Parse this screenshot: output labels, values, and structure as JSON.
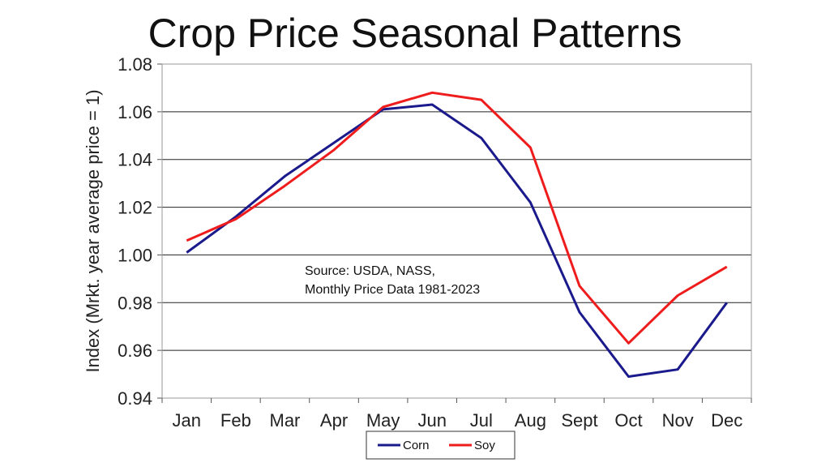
{
  "chart_data": {
    "type": "line",
    "title": "Crop Price Seasonal Patterns",
    "ylabel": "Index (Mrkt. year average price = 1)",
    "xlabel": "",
    "categories": [
      "Jan",
      "Feb",
      "Mar",
      "Apr",
      "May",
      "Jun",
      "Jul",
      "Aug",
      "Sept",
      "Oct",
      "Nov",
      "Dec"
    ],
    "ylim": [
      0.94,
      1.08
    ],
    "yticks": [
      "0.94",
      "0.96",
      "0.98",
      "1.00",
      "1.02",
      "1.04",
      "1.06",
      "1.08"
    ],
    "grid": true,
    "legend_position": "bottom",
    "annotation": [
      "Source: USDA, NASS,",
      "Monthly Price Data 1981-2023"
    ],
    "series": [
      {
        "name": "Corn",
        "color": "#1a1a8c",
        "values": [
          1.001,
          1.016,
          1.033,
          1.047,
          1.061,
          1.063,
          1.049,
          1.022,
          0.976,
          0.949,
          0.952,
          0.98
        ]
      },
      {
        "name": "Soy",
        "color": "#ee1c1c",
        "values": [
          1.006,
          1.015,
          1.029,
          1.044,
          1.062,
          1.068,
          1.065,
          1.045,
          0.987,
          0.963,
          0.983,
          0.995
        ]
      }
    ]
  }
}
